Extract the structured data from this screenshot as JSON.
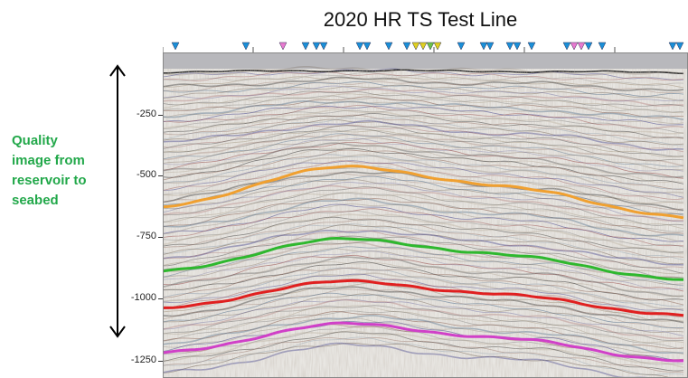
{
  "title": "2020 HR TS Test Line",
  "callout": {
    "lines": [
      "Quality",
      "image from",
      "reservoir to",
      "seabed"
    ],
    "color": "#22a84a"
  },
  "depth_axis": {
    "labels": [
      "-250",
      "-500",
      "-750",
      "-1000",
      "-1250"
    ]
  },
  "horizons": [
    {
      "color": "#f0a030",
      "icon": "orange-horizon"
    },
    {
      "color": "#2eb82e",
      "icon": "green-horizon"
    },
    {
      "color": "#e02020",
      "icon": "red-horizon"
    },
    {
      "color": "#d040c8",
      "icon": "magenta-horizon"
    }
  ],
  "well_markers": {
    "blue": "#1a8fd8",
    "pink": "#e87ad0",
    "yellow": "#e0d020",
    "green": "#6cc24a"
  }
}
